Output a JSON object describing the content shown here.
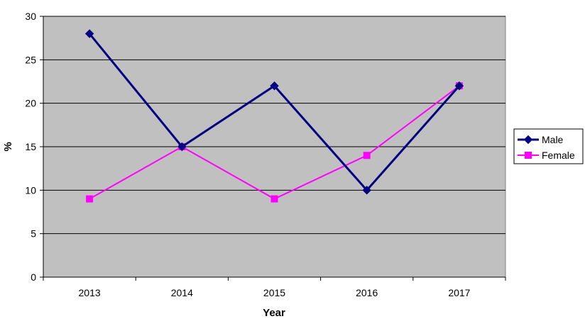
{
  "chart_data": {
    "type": "line",
    "title": "",
    "xlabel": "Year",
    "ylabel": "%",
    "categories": [
      "2013",
      "2014",
      "2015",
      "2016",
      "2017"
    ],
    "ylim": [
      0,
      30
    ],
    "yticks": [
      "0",
      "5",
      "10",
      "15",
      "20",
      "25",
      "30"
    ],
    "grid": true,
    "legend_position": "right",
    "plot_background": "#c0c0c0",
    "series": [
      {
        "name": "Male",
        "values": [
          28,
          15,
          22,
          10,
          22
        ],
        "color": "#000080",
        "marker": "diamond"
      },
      {
        "name": "Female",
        "values": [
          9,
          15,
          9,
          14,
          22
        ],
        "color": "#ff00ff",
        "marker": "square"
      }
    ]
  }
}
